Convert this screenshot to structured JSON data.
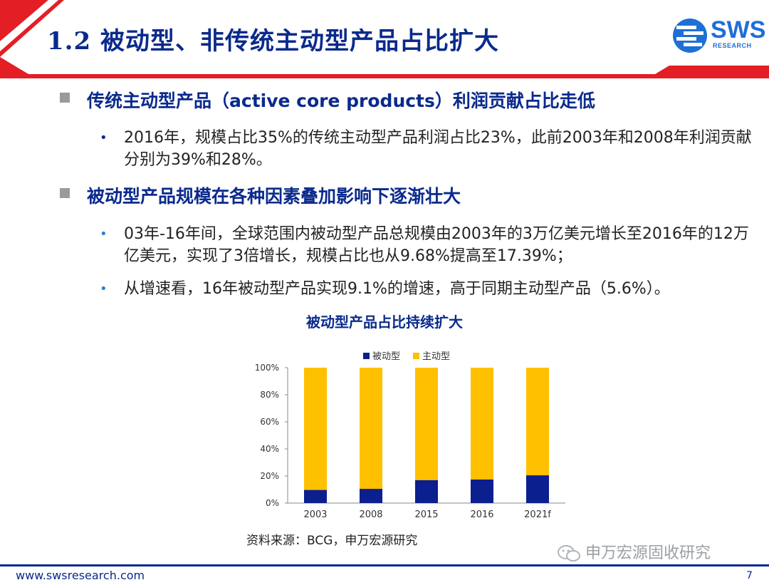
{
  "slide": {
    "title": "1.2 被动型、非传统主动型产品占比扩大",
    "logo_text": "SWS",
    "logo_sub": "RESEARCH"
  },
  "sections": [
    {
      "heading": "传统主动型产品（active core products）利润贡献占比走低",
      "bullets": [
        "2016年，规模占比35%的传统主动型产品利润占比23%，此前2003年和2008年利润贡献分别为39%和28%。"
      ]
    },
    {
      "heading": "被动型产品规模在各种因素叠加影响下逐渐壮大",
      "bullets": [
        "03年-16年间，全球范围内被动型产品总规模由2003年的3万亿美元增长至2016年的12万亿美元，实现了3倍增长，规模占比也从9.68%提高至17.39%；",
        "从增速看，16年被动型产品实现9.1%的增速，高于同期主动型产品（5.6%）。"
      ]
    }
  ],
  "chart_title": "被动型产品占比持续扩大",
  "chart_data": {
    "type": "bar",
    "stacked": true,
    "categories": [
      "2003",
      "2008",
      "2015",
      "2016",
      "2021f"
    ],
    "series": [
      {
        "name": "被动型",
        "values": [
          9.7,
          10.5,
          17.0,
          17.4,
          20.5
        ],
        "color": "#0b1f8f"
      },
      {
        "name": "主动型",
        "values": [
          90.3,
          89.5,
          83.0,
          82.6,
          79.5
        ],
        "color": "#ffc000"
      }
    ],
    "ylim": [
      0,
      100
    ],
    "yticks": [
      "0%",
      "20%",
      "40%",
      "60%",
      "80%",
      "100%"
    ],
    "legend": "top",
    "grid": false
  },
  "source": "资料来源：BCG，申万宏源研究",
  "watermark": "申万宏源固收研究",
  "footer": {
    "url": "www.swsresearch.com",
    "page": "7"
  },
  "colors": {
    "brand_blue": "#0a2a8c",
    "accent_red": "#e31e24",
    "logo_blue": "#1e6fd6"
  }
}
